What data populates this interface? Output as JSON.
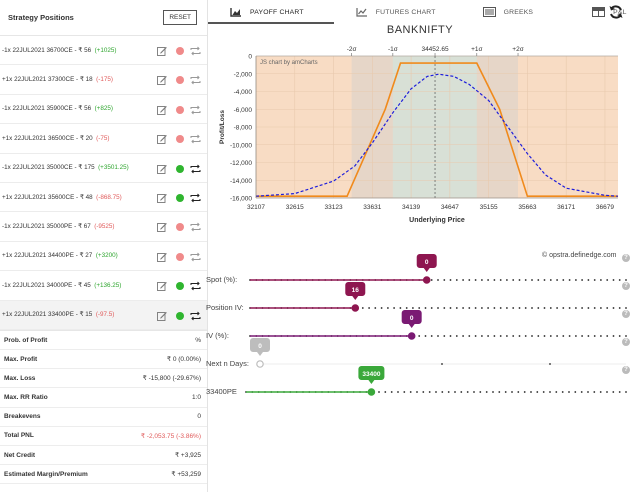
{
  "left_panel": {
    "title": "Strategy Positions",
    "reset_label": "RESET",
    "positions": [
      {
        "text": "-1x 22JUL2021 36700CE - ₹ 56",
        "pnl": "(+1025)",
        "pnl_sign": "pos",
        "status": "red"
      },
      {
        "text": "+1x 22JUL2021 37300CE - ₹ 18",
        "pnl": "(-175)",
        "pnl_sign": "neg",
        "status": "red"
      },
      {
        "text": "-1x 22JUL2021 35900CE - ₹ 56",
        "pnl": "(+825)",
        "pnl_sign": "pos",
        "status": "red"
      },
      {
        "text": "+1x 22JUL2021 36500CE - ₹ 20",
        "pnl": "(-75)",
        "pnl_sign": "neg",
        "status": "red"
      },
      {
        "text": "-1x 22JUL2021 35000CE - ₹ 175",
        "pnl": "(+3501.25)",
        "pnl_sign": "pos",
        "status": "green"
      },
      {
        "text": "+1x 22JUL2021 35600CE - ₹ 48",
        "pnl": "(-868.75)",
        "pnl_sign": "neg",
        "status": "green"
      },
      {
        "text": "-1x 22JUL2021 35000PE - ₹ 67",
        "pnl": "(-9525)",
        "pnl_sign": "neg",
        "status": "red"
      },
      {
        "text": "+1x 22JUL2021 34400PE - ₹ 27",
        "pnl": "(+3200)",
        "pnl_sign": "pos",
        "status": "red"
      },
      {
        "text": "-1x 22JUL2021 34000PE - ₹ 45",
        "pnl": "(+136.25)",
        "pnl_sign": "pos",
        "status": "green"
      },
      {
        "text": "+1x 22JUL2021 33400PE - ₹ 15",
        "pnl": "(-97.5)",
        "pnl_sign": "neg",
        "status": "green"
      }
    ],
    "stats": [
      {
        "label": "Prob. of Profit",
        "value": "%",
        "neg": false
      },
      {
        "label": "Max. Profit",
        "value": "₹ 0 (0.00%)",
        "neg": false
      },
      {
        "label": "Max. Loss",
        "value": "₹ -15,800 (-29.67%)",
        "neg": false
      },
      {
        "label": "Max. RR Ratio",
        "value": "1:0",
        "neg": false
      },
      {
        "label": "Breakevens",
        "value": "0",
        "neg": false
      },
      {
        "label": "Total PNL",
        "value": "₹ -2,053.75 (-3.86%)",
        "neg": true
      },
      {
        "label": "Net Credit",
        "value": "₹ +3,925",
        "neg": false
      },
      {
        "label": "Estimated Margin/Premium",
        "value": "₹ +53,259",
        "neg": false
      }
    ]
  },
  "tabs": [
    {
      "label": "PAYOFF CHART",
      "icon": "area-chart-icon"
    },
    {
      "label": "FUTURES CHART",
      "icon": "line-chart-icon"
    },
    {
      "label": "GREEKS",
      "icon": "list-icon"
    },
    {
      "label": "P&L",
      "icon": "table-icon"
    }
  ],
  "chart_title": "BANKNIFTY",
  "chart_credit": "JS chart by amCharts",
  "site_credit": "© opstra.definedge.com",
  "chart_data": {
    "type": "line",
    "title": "BANKNIFTY",
    "xlabel": "Underlying Price",
    "ylabel": "Profit/Loss",
    "xlim": [
      32107,
      36850
    ],
    "ylim": [
      -16000,
      0
    ],
    "x_ticks": [
      32107,
      32615,
      33123,
      33631,
      34139,
      34647,
      35155,
      35663,
      36171,
      36679
    ],
    "y_ticks": [
      -16000,
      -14000,
      -12000,
      -10000,
      -8000,
      -6000,
      -4000,
      -2000,
      0
    ],
    "y_tick_labels": [
      "-16,000",
      "-14,000",
      "-12,000",
      "-10,000",
      "-8,000",
      "-6,000",
      "-4,000",
      "-2,000",
      "0"
    ],
    "top_ticks": [
      {
        "label": "-2σ",
        "x": 33360
      },
      {
        "label": "-1σ",
        "x": 33900
      },
      {
        "label": "34452.65",
        "x": 34452.65
      },
      {
        "label": "+1σ",
        "x": 35000
      },
      {
        "label": "+2σ",
        "x": 35540
      }
    ],
    "spot": 34452.65,
    "series": [
      {
        "name": "",
        "style": "solid",
        "color": "#f08a1c",
        "points": [
          [
            32107,
            -15800
          ],
          [
            33300,
            -15800
          ],
          [
            33800,
            -6000
          ],
          [
            34000,
            -800
          ],
          [
            35000,
            -800
          ],
          [
            35300,
            -6000
          ],
          [
            35663,
            -15800
          ],
          [
            36850,
            -15800
          ]
        ]
      },
      {
        "name": "",
        "style": "dashed",
        "color": "#1d1ddb",
        "points": [
          [
            32107,
            -15800
          ],
          [
            32615,
            -15500
          ],
          [
            33123,
            -14100
          ],
          [
            33400,
            -12400
          ],
          [
            33631,
            -9800
          ],
          [
            33900,
            -6400
          ],
          [
            34139,
            -3700
          ],
          [
            34350,
            -2300
          ],
          [
            34500,
            -2050
          ],
          [
            34700,
            -2300
          ],
          [
            34900,
            -3200
          ],
          [
            35155,
            -5000
          ],
          [
            35400,
            -7900
          ],
          [
            35663,
            -11000
          ],
          [
            35900,
            -13400
          ],
          [
            36171,
            -14900
          ],
          [
            36679,
            -15700
          ],
          [
            36850,
            -15800
          ]
        ]
      }
    ]
  },
  "sliders": [
    {
      "label": "Spot (%):",
      "bubble": "0",
      "color": "#8e1650",
      "filled": true
    },
    {
      "label": "Position IV:",
      "bubble": "16",
      "color": "#8e1650",
      "filled": true
    },
    {
      "label": "IV (%):",
      "bubble": "0",
      "color": "#7a1a73",
      "filled": true
    },
    {
      "label": "Next n Days:",
      "bubble": "0",
      "color": "#bdbdbd",
      "filled": false
    },
    {
      "label": "33400PE",
      "bubble": "33400",
      "color": "#3aa83a",
      "filled": true
    }
  ],
  "slider_levels": [
    0.47,
    0.28,
    0.43,
    0.0,
    0.33
  ]
}
